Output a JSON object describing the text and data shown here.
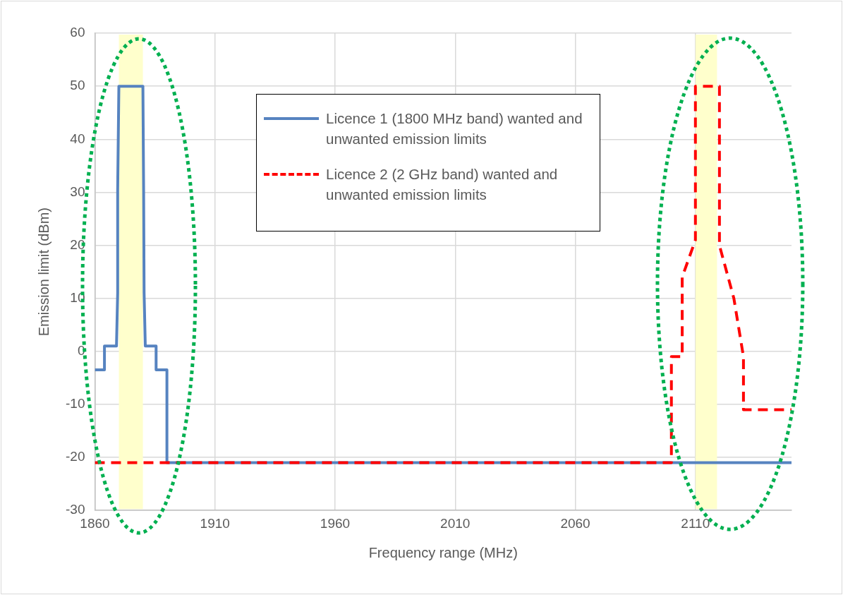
{
  "chart_data": {
    "type": "line",
    "xlabel": "Frequency range (MHz)",
    "ylabel": "Emission limit (dBm)",
    "xlim": [
      1860,
      2150
    ],
    "xticks": [
      1860,
      1910,
      1960,
      2010,
      2060,
      2110
    ],
    "ylim": [
      -30,
      60
    ],
    "yticks": [
      -30,
      -20,
      -10,
      0,
      10,
      20,
      30,
      40,
      50,
      60
    ],
    "grid": true,
    "legend": "top",
    "marker": "none",
    "series": [
      {
        "name": "Licence 1 (1800 MHz band) wanted and unwanted emission limits",
        "color": "#5683c0",
        "line_style": "solid",
        "x": [
          1860,
          1864,
          1864,
          1869,
          1869.5,
          1869.5,
          1870,
          1880,
          1880.3,
          1880.5,
          1881,
          1885.5,
          1885.5,
          1890,
          1890,
          2150
        ],
        "values": [
          -3.5,
          -3.5,
          1,
          1,
          11,
          30.5,
          50,
          50,
          30.5,
          11,
          1,
          1,
          -3.5,
          -3.5,
          -21,
          -21
        ]
      },
      {
        "name": "Licence 2 (2 GHz band) wanted and unwanted emission limits",
        "color": "#ff0000",
        "line_style": "dashed",
        "x": [
          1860,
          2100,
          2100,
          2104.5,
          2104.5,
          2110,
          2110,
          2120,
          2120,
          2126,
          2130,
          2130,
          2150
        ],
        "values": [
          -21,
          -21,
          -1,
          -1,
          14,
          21,
          50,
          50,
          20,
          10,
          -1,
          -11,
          -11
        ]
      }
    ],
    "bands": [
      {
        "axis": "x",
        "from": 1870,
        "to": 1880,
        "color": "#ffffcc"
      },
      {
        "axis": "x",
        "from": 2110,
        "to": 2119,
        "color": "#ffffcc"
      }
    ]
  }
}
